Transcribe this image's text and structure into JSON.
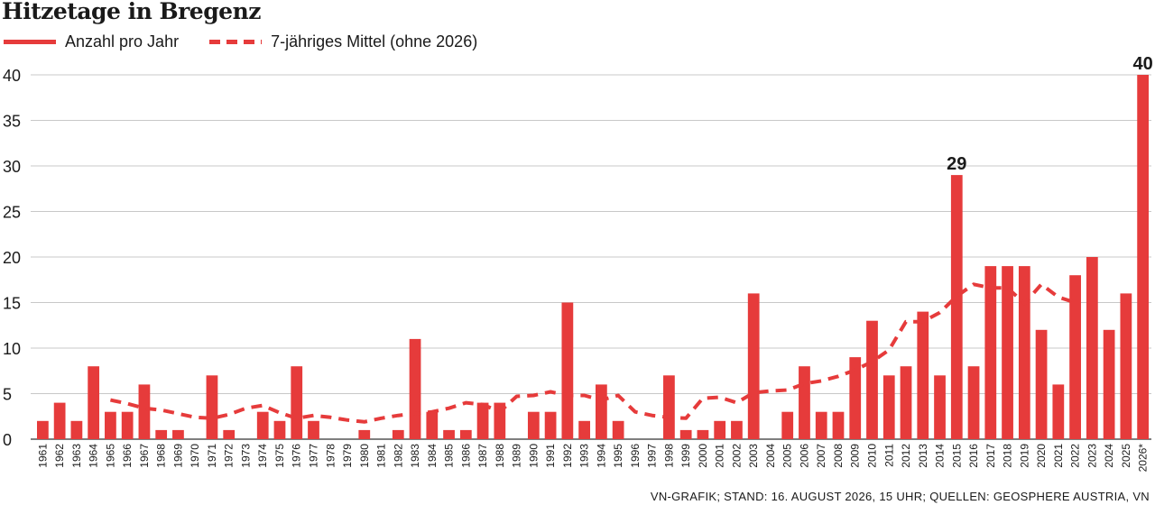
{
  "header": {
    "title": "Hitzetage in Bregenz"
  },
  "legend": {
    "bars_label": "Anzahl pro Jahr",
    "line_label": "7-jähriges Mittel (ohne 2026)"
  },
  "footer": {
    "text": "VN-GRAFIK; STAND: 16. AUGUST 2026, 15 UHR; QUELLEN: GEOSPHERE AUSTRIA, VN"
  },
  "colors": {
    "bar": "#e63b3b",
    "line": "#e63b3b",
    "grid": "#c8c8c8",
    "text": "#1a1a1a"
  },
  "chart_data": {
    "type": "bar",
    "title": "Hitzetage in Bregenz",
    "xlabel": "",
    "ylabel": "",
    "ylim": [
      0,
      40
    ],
    "yticks": [
      0,
      5,
      10,
      15,
      20,
      25,
      30,
      35,
      40
    ],
    "grid": true,
    "legend_position": "top-left",
    "categories": [
      "1961",
      "1962",
      "1963",
      "1964",
      "1965",
      "1966",
      "1967",
      "1968",
      "1969",
      "1970",
      "1971",
      "1972",
      "1973",
      "1974",
      "1975",
      "1976",
      "1977",
      "1978",
      "1979",
      "1980",
      "1981",
      "1982",
      "1983",
      "1984",
      "1985",
      "1986",
      "1987",
      "1988",
      "1989",
      "1990",
      "1991",
      "1992",
      "1993",
      "1994",
      "1995",
      "1996",
      "1997",
      "1998",
      "1999",
      "2000",
      "2001",
      "2002",
      "2003",
      "2004",
      "2005",
      "2006",
      "2007",
      "2008",
      "2009",
      "2010",
      "2011",
      "2012",
      "2013",
      "2014",
      "2015",
      "2016",
      "2017",
      "2018",
      "2019",
      "2020",
      "2021",
      "2022",
      "2023",
      "2024",
      "2025",
      "2026*"
    ],
    "series": [
      {
        "name": "Anzahl pro Jahr",
        "type": "bar",
        "values": [
          2,
          4,
          2,
          8,
          3,
          3,
          6,
          1,
          1,
          0,
          7,
          1,
          0,
          3,
          2,
          8,
          2,
          0,
          0,
          1,
          0,
          1,
          11,
          3,
          1,
          1,
          4,
          4,
          0,
          3,
          3,
          15,
          2,
          6,
          2,
          0,
          0,
          7,
          1,
          1,
          2,
          2,
          16,
          0,
          3,
          8,
          3,
          3,
          9,
          13,
          7,
          8,
          14,
          7,
          29,
          8,
          19,
          19,
          19,
          12,
          6,
          18,
          20,
          12,
          16,
          40
        ]
      },
      {
        "name": "7-jähriges Mittel (ohne 2026)",
        "type": "line",
        "style": "dashed",
        "values": [
          null,
          null,
          null,
          null,
          4.3,
          3.9,
          3.4,
          3.2,
          2.8,
          2.4,
          2.3,
          2.7,
          3.4,
          3.7,
          2.9,
          2.3,
          2.6,
          2.4,
          2.1,
          1.9,
          2.3,
          2.6,
          2.8,
          3.0,
          3.4,
          4.0,
          3.8,
          3.0,
          4.7,
          4.8,
          5.2,
          4.8,
          4.8,
          4.3,
          4.8,
          3.0,
          2.6,
          2.4,
          2.3,
          4.5,
          4.6,
          4.0,
          5.1,
          5.3,
          5.4,
          6.1,
          6.4,
          6.9,
          7.6,
          8.5,
          9.8,
          12.9,
          12.9,
          13.9,
          15.7,
          17.0,
          16.6,
          16.6,
          14.9,
          17.0,
          15.6,
          15.0,
          null,
          null,
          null,
          null
        ]
      }
    ],
    "data_labels": [
      {
        "category": "2015",
        "value": 29,
        "text": "29"
      },
      {
        "category": "2026*",
        "value": 40,
        "text": "40"
      }
    ]
  }
}
